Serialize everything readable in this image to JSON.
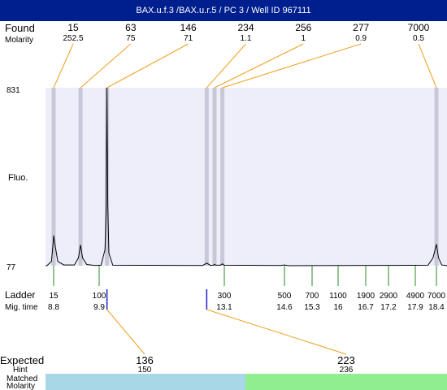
{
  "header": {
    "title": "BAX.u.f.3 /BAX.u.r.5 / PC 3 / Well ID 967111",
    "bg_color": "#001f8f"
  },
  "labels": {
    "found": "Found",
    "molarity": "Molarity",
    "fluo": "Fluo.",
    "ladder": "Ladder",
    "mig_time": "Mig. time",
    "expected": "Expected",
    "hint": "Hint",
    "matched": "Matched",
    "molarity_bottom": "Molarity"
  },
  "colors": {
    "plot_bg": "#eeeefa",
    "band": "#c8c8d8",
    "callout_line": "#f0a020",
    "ladder_tick": "#2a8a2a",
    "expected_tick": "#2020c8",
    "matched_left": "#a8d8e8",
    "matched_right": "#90ee90"
  },
  "chart_data": {
    "type": "line",
    "ylabel": "Fluo.",
    "y_ticks": [
      "831",
      "77"
    ],
    "ylim": [
      77,
      831
    ],
    "found_peaks": [
      {
        "size": "15",
        "molarity": "252.5",
        "time": 8.8
      },
      {
        "size": "63",
        "molarity": "75",
        "time": 9.45
      },
      {
        "size": "146",
        "molarity": "71",
        "time": 10.1
      },
      {
        "size": "234",
        "molarity": "1.1",
        "time": 12.65
      },
      {
        "size": "256",
        "molarity": "1",
        "time": 12.85
      },
      {
        "size": "277",
        "molarity": "0.9",
        "time": 13.05
      },
      {
        "size": "7000",
        "molarity": "0.5",
        "time": 18.4
      }
    ],
    "ladder": [
      {
        "size": "15",
        "time": "8.8"
      },
      {
        "size": "100",
        "time": "9.9"
      },
      {
        "size": "300",
        "time": "13.1"
      },
      {
        "size": "500",
        "time": "14.6"
      },
      {
        "size": "700",
        "time": "15.3"
      },
      {
        "size": "1100",
        "time": "16"
      },
      {
        "size": "1900",
        "time": "16.7"
      },
      {
        "size": "2900",
        "time": "17.2"
      },
      {
        "size": "4900",
        "time": "17.9"
      },
      {
        "size": "7000",
        "time": "18.4"
      }
    ],
    "expected": [
      {
        "size": "136",
        "hint": "150",
        "matched": "146",
        "molarity": "71",
        "time": 10.1
      },
      {
        "size": "223",
        "hint": "236",
        "matched": "234",
        "molarity": "1.1",
        "time": 12.65
      }
    ],
    "trace": [
      [
        8.55,
        77
      ],
      [
        8.72,
        95
      ],
      [
        8.78,
        170
      ],
      [
        8.8,
        205
      ],
      [
        8.83,
        170
      ],
      [
        8.9,
        95
      ],
      [
        9.05,
        80
      ],
      [
        9.3,
        80
      ],
      [
        9.4,
        110
      ],
      [
        9.45,
        165
      ],
      [
        9.5,
        110
      ],
      [
        9.6,
        82
      ],
      [
        9.8,
        78
      ],
      [
        9.95,
        79
      ],
      [
        10.05,
        145
      ],
      [
        10.08,
        330
      ],
      [
        10.1,
        831
      ],
      [
        10.12,
        330
      ],
      [
        10.15,
        130
      ],
      [
        10.25,
        79
      ],
      [
        12.55,
        78
      ],
      [
        12.62,
        85
      ],
      [
        12.65,
        88
      ],
      [
        12.68,
        85
      ],
      [
        12.75,
        78
      ],
      [
        12.82,
        79
      ],
      [
        12.85,
        83
      ],
      [
        12.88,
        79
      ],
      [
        13.0,
        79
      ],
      [
        13.05,
        85
      ],
      [
        13.1,
        79
      ],
      [
        14.5,
        78
      ],
      [
        14.6,
        80
      ],
      [
        14.7,
        77
      ],
      [
        18.2,
        79
      ],
      [
        18.32,
        110
      ],
      [
        18.4,
        168
      ],
      [
        18.48,
        110
      ],
      [
        18.6,
        80
      ],
      [
        18.8,
        77
      ]
    ]
  }
}
